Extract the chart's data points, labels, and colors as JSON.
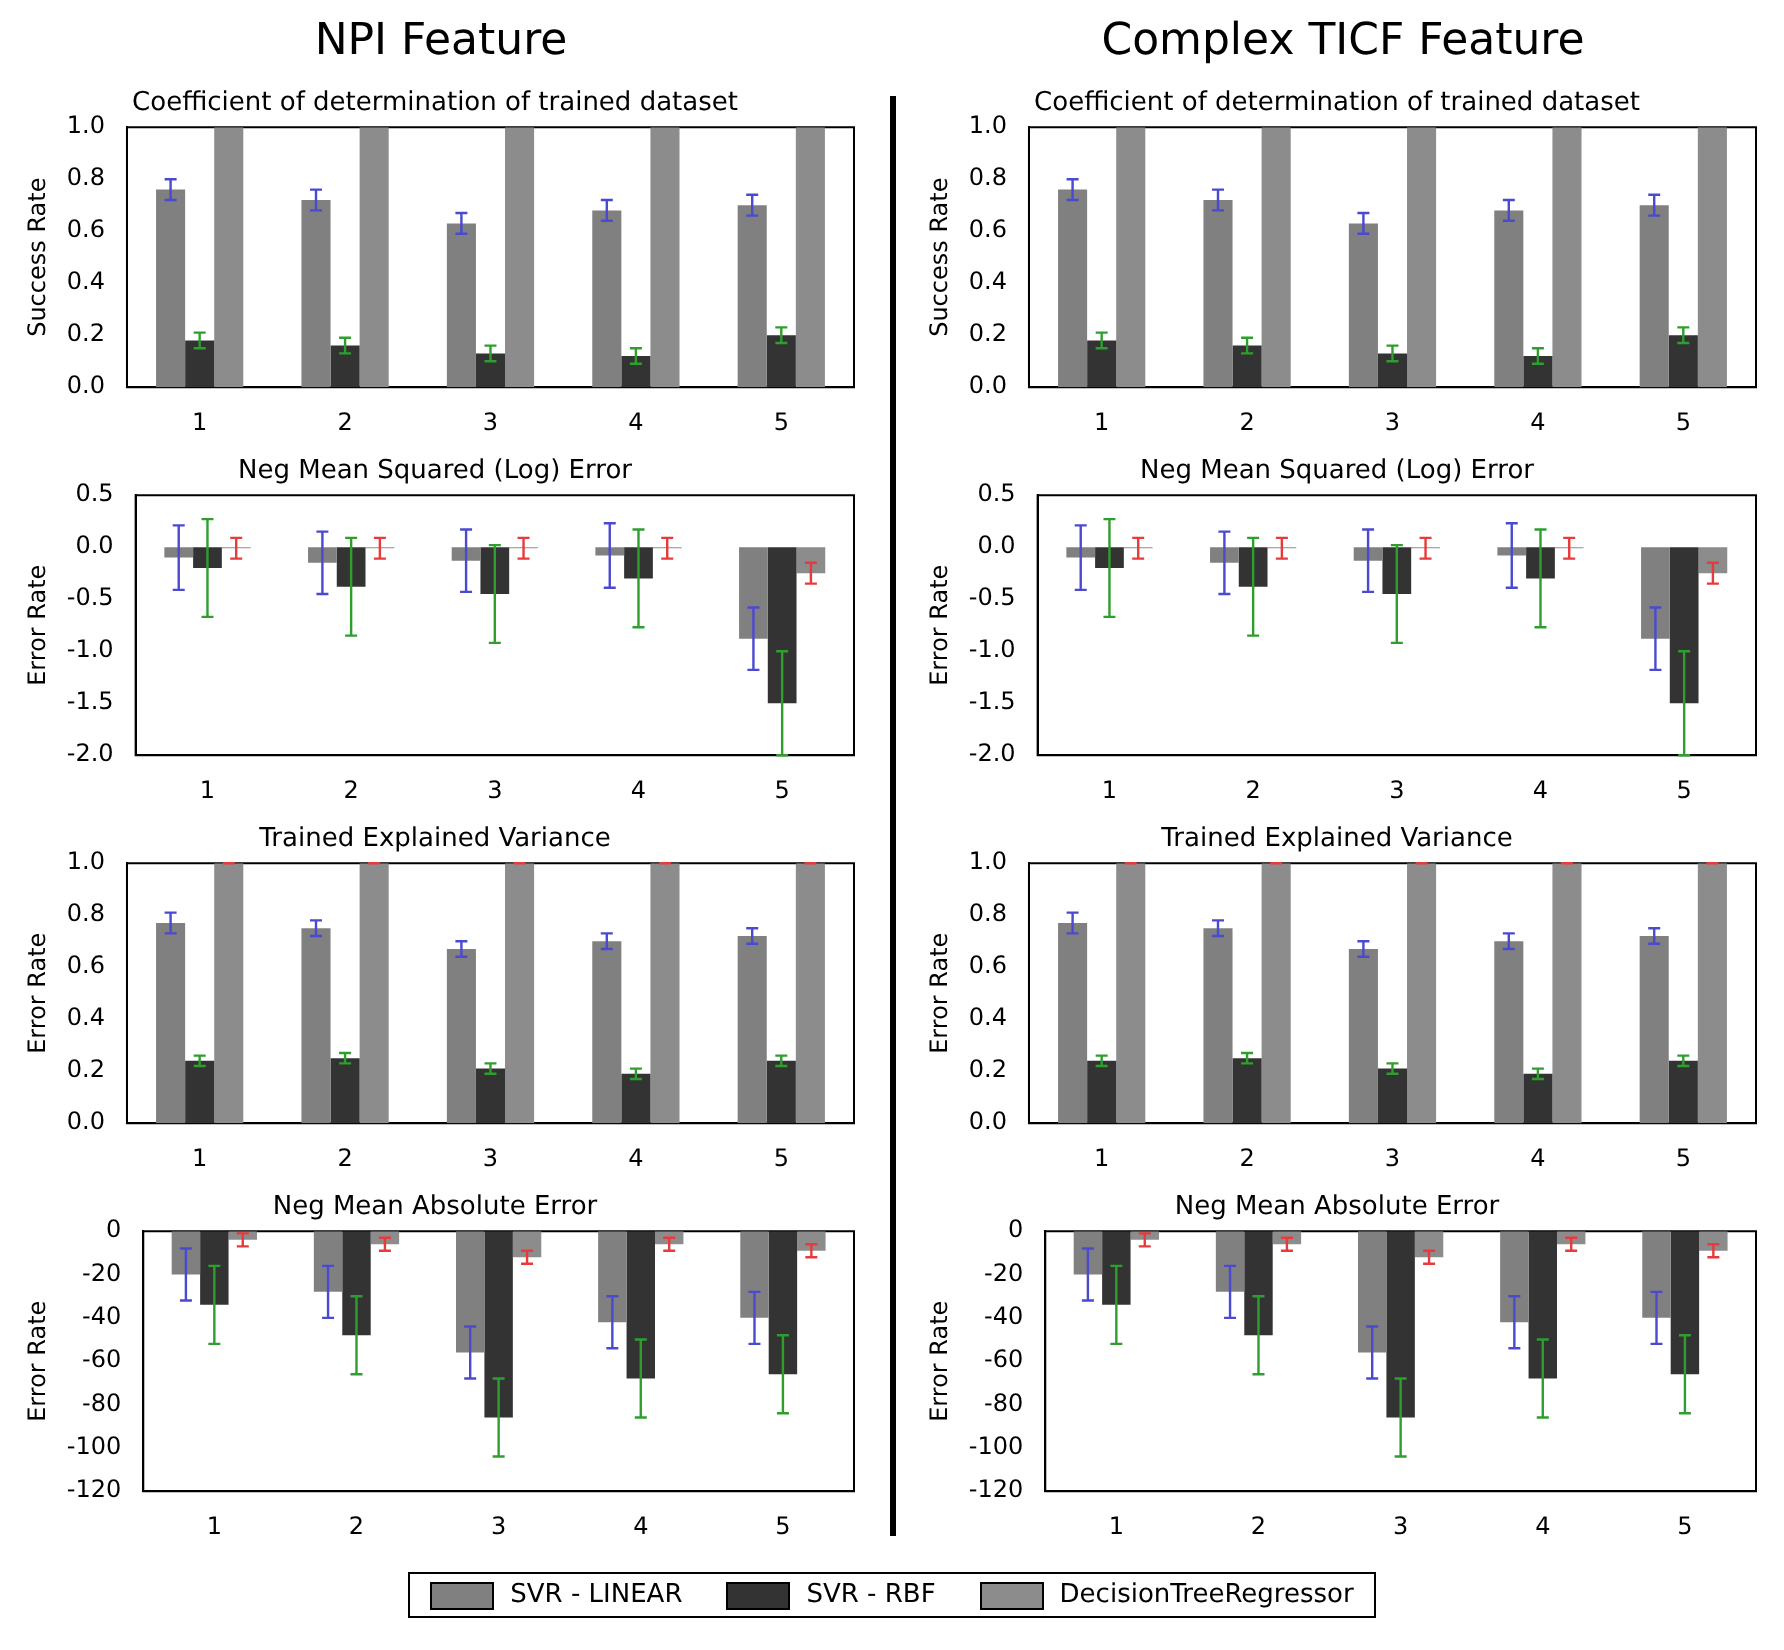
{
  "chart_data": [
    {
      "type": "bar",
      "title": "NPI Feature",
      "subtitle": "Coefficient of determination of trained dataset",
      "ylabel": "Success Rate",
      "categories": [
        "1",
        "2",
        "3",
        "4",
        "5"
      ],
      "ylim": [
        0,
        1
      ],
      "yticks": [
        {
          "value": 0,
          "label": "0.0"
        },
        0.2,
        0.4,
        0.6,
        0.8,
        {
          "value": 1,
          "label": "1.0"
        }
      ],
      "legend": "bottom",
      "series": [
        {
          "name": "SVR - LINEAR",
          "color": "#808080",
          "values": [
            0.76,
            0.72,
            0.63,
            0.68,
            0.7
          ],
          "errors": [
            0.04,
            0.04,
            0.04,
            0.04,
            0.04
          ]
        },
        {
          "name": "SVR - RBF",
          "color": "#333333",
          "values": [
            0.18,
            0.16,
            0.13,
            0.12,
            0.2
          ],
          "errors": [
            0.03,
            0.03,
            0.03,
            0.03,
            0.03
          ]
        },
        {
          "name": "DecisionTreeRegressor",
          "color": "#8c8c8c",
          "values": [
            1,
            1,
            1,
            1,
            1
          ]
        }
      ]
    },
    {
      "type": "bar",
      "title": "Complex TICF Feature",
      "subtitle": "Coefficient of determination of trained dataset",
      "ylabel": "Success Rate",
      "categories": [
        "1",
        "2",
        "3",
        "4",
        "5"
      ],
      "ylim": [
        0,
        1
      ],
      "yticks": [
        {
          "value": 0,
          "label": "0.0"
        },
        0.2,
        0.4,
        0.6,
        0.8,
        {
          "value": 1,
          "label": "1.0"
        }
      ],
      "legend": "bottom",
      "series": [
        {
          "name": "SVR - LINEAR",
          "color": "#808080",
          "values": [
            0.76,
            0.72,
            0.63,
            0.68,
            0.7
          ],
          "errors": [
            0.04,
            0.04,
            0.04,
            0.04,
            0.04
          ]
        },
        {
          "name": "SVR - RBF",
          "color": "#333333",
          "values": [
            0.18,
            0.16,
            0.13,
            0.12,
            0.2
          ],
          "errors": [
            0.03,
            0.03,
            0.03,
            0.03,
            0.03
          ]
        },
        {
          "name": "DecisionTreeRegressor",
          "color": "#8c8c8c",
          "values": [
            1,
            1,
            1,
            1,
            1
          ]
        }
      ]
    },
    {
      "type": "bar",
      "title": "Neg Mean Squared (Log) Error",
      "ylabel": "Error Rate",
      "categories": [
        "1",
        "2",
        "3",
        "4",
        "5"
      ],
      "ylim": [
        -2,
        0.5
      ],
      "yticks": [
        {
          "value": -2,
          "label": "-2.0"
        },
        -1.5,
        {
          "value": -1,
          "label": "-1.0"
        },
        -0.5,
        {
          "value": 0,
          "label": "0.0"
        },
        0.5
      ],
      "legend": "bottom",
      "series": [
        {
          "name": "SVR - LINEAR",
          "color": "#808080",
          "values": [
            -0.1,
            -0.15,
            -0.13,
            -0.08,
            -0.88
          ],
          "errors": [
            0.31,
            0.3,
            0.3,
            0.31,
            0.3
          ]
        },
        {
          "name": "SVR - RBF",
          "color": "#333333",
          "values": [
            -0.2,
            -0.38,
            -0.45,
            -0.3,
            -1.5
          ],
          "errors": [
            0.47,
            0.47,
            0.47,
            0.47,
            0.5
          ]
        },
        {
          "name": "DecisionTreeRegressor",
          "color": "#8c8c8c",
          "values": [
            -0.01,
            -0.01,
            -0.01,
            -0.01,
            -0.25
          ],
          "errors": [
            0.1,
            0.1,
            0.1,
            0.1,
            0.1
          ]
        }
      ]
    },
    {
      "type": "bar",
      "title": "Neg Mean Squared (Log) Error",
      "ylabel": "Error Rate",
      "categories": [
        "1",
        "2",
        "3",
        "4",
        "5"
      ],
      "ylim": [
        -2,
        0.5
      ],
      "yticks": [
        {
          "value": -2,
          "label": "-2.0"
        },
        -1.5,
        {
          "value": -1,
          "label": "-1.0"
        },
        -0.5,
        {
          "value": 0,
          "label": "0.0"
        },
        0.5
      ],
      "legend": "bottom",
      "series": [
        {
          "name": "SVR - LINEAR",
          "color": "#808080",
          "values": [
            -0.1,
            -0.15,
            -0.13,
            -0.08,
            -0.88
          ],
          "errors": [
            0.31,
            0.3,
            0.3,
            0.31,
            0.3
          ]
        },
        {
          "name": "SVR - RBF",
          "color": "#333333",
          "values": [
            -0.2,
            -0.38,
            -0.45,
            -0.3,
            -1.5
          ],
          "errors": [
            0.47,
            0.47,
            0.47,
            0.47,
            0.5
          ]
        },
        {
          "name": "DecisionTreeRegressor",
          "color": "#8c8c8c",
          "values": [
            -0.01,
            -0.01,
            -0.01,
            -0.01,
            -0.25
          ],
          "errors": [
            0.1,
            0.1,
            0.1,
            0.1,
            0.1
          ]
        }
      ]
    },
    {
      "type": "bar",
      "title": "Trained Explained Variance",
      "ylabel": "Error Rate",
      "categories": [
        "1",
        "2",
        "3",
        "4",
        "5"
      ],
      "ylim": [
        0,
        1
      ],
      "yticks": [
        {
          "value": 0,
          "label": "0.0"
        },
        0.2,
        0.4,
        0.6,
        0.8,
        {
          "value": 1,
          "label": "1.0"
        }
      ],
      "legend": "bottom",
      "series": [
        {
          "name": "SVR - LINEAR",
          "color": "#808080",
          "values": [
            0.77,
            0.75,
            0.67,
            0.7,
            0.72
          ],
          "errors": [
            0.04,
            0.03,
            0.03,
            0.03,
            0.03
          ]
        },
        {
          "name": "SVR - RBF",
          "color": "#333333",
          "values": [
            0.24,
            0.25,
            0.21,
            0.19,
            0.24
          ],
          "errors": [
            0.02,
            0.02,
            0.02,
            0.02,
            0.02
          ]
        },
        {
          "name": "DecisionTreeRegressor",
          "color": "#8c8c8c",
          "values": [
            1,
            1,
            1,
            1,
            1
          ],
          "errors": [
            0,
            0,
            0,
            0,
            0
          ]
        }
      ]
    },
    {
      "type": "bar",
      "title": "Trained Explained Variance",
      "ylabel": "Error Rate",
      "categories": [
        "1",
        "2",
        "3",
        "4",
        "5"
      ],
      "ylim": [
        0,
        1
      ],
      "yticks": [
        {
          "value": 0,
          "label": "0.0"
        },
        0.2,
        0.4,
        0.6,
        0.8,
        {
          "value": 1,
          "label": "1.0"
        }
      ],
      "legend": "bottom",
      "series": [
        {
          "name": "SVR - LINEAR",
          "color": "#808080",
          "values": [
            0.77,
            0.75,
            0.67,
            0.7,
            0.72
          ],
          "errors": [
            0.04,
            0.03,
            0.03,
            0.03,
            0.03
          ]
        },
        {
          "name": "SVR - RBF",
          "color": "#333333",
          "values": [
            0.24,
            0.25,
            0.21,
            0.19,
            0.24
          ],
          "errors": [
            0.02,
            0.02,
            0.02,
            0.02,
            0.02
          ]
        },
        {
          "name": "DecisionTreeRegressor",
          "color": "#8c8c8c",
          "values": [
            1,
            1,
            1,
            1,
            1
          ],
          "errors": [
            0,
            0,
            0,
            0,
            0
          ]
        }
      ]
    },
    {
      "type": "bar",
      "title": "Neg Mean Absolute Error",
      "ylabel": "Error Rate",
      "categories": [
        "1",
        "2",
        "3",
        "4",
        "5"
      ],
      "ylim": [
        -120,
        0
      ],
      "yticks": [
        -120,
        -100,
        -80,
        -60,
        -40,
        -20,
        0
      ],
      "legend": "bottom",
      "series": [
        {
          "name": "SVR - LINEAR",
          "color": "#808080",
          "values": [
            -20,
            -28,
            -56,
            -42,
            -40
          ],
          "errors": [
            12,
            12,
            12,
            12,
            12
          ]
        },
        {
          "name": "SVR - RBF",
          "color": "#333333",
          "values": [
            -34,
            -48,
            -86,
            -68,
            -66
          ],
          "errors": [
            18,
            18,
            18,
            18,
            18
          ]
        },
        {
          "name": "DecisionTreeRegressor",
          "color": "#8c8c8c",
          "values": [
            -4,
            -6,
            -12,
            -6,
            -9
          ],
          "errors": [
            3,
            3,
            3,
            3,
            3
          ]
        }
      ]
    },
    {
      "type": "bar",
      "title": "Neg Mean Absolute Error",
      "ylabel": "Error Rate",
      "categories": [
        "1",
        "2",
        "3",
        "4",
        "5"
      ],
      "ylim": [
        -120,
        0
      ],
      "yticks": [
        -120,
        -100,
        -80,
        -60,
        -40,
        -20,
        0
      ],
      "legend": "bottom",
      "series": [
        {
          "name": "SVR - LINEAR",
          "color": "#808080",
          "values": [
            -20,
            -28,
            -56,
            -42,
            -40
          ],
          "errors": [
            12,
            12,
            12,
            12,
            12
          ]
        },
        {
          "name": "SVR - RBF",
          "color": "#333333",
          "values": [
            -34,
            -48,
            -86,
            -68,
            -66
          ],
          "errors": [
            18,
            18,
            18,
            18,
            18
          ]
        },
        {
          "name": "DecisionTreeRegressor",
          "color": "#8c8c8c",
          "values": [
            -4,
            -6,
            -12,
            -6,
            -9
          ],
          "errors": [
            3,
            3,
            3,
            3,
            3
          ]
        }
      ]
    }
  ]
}
